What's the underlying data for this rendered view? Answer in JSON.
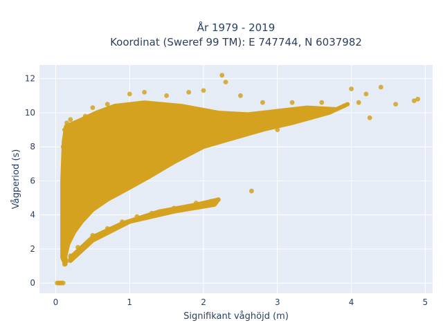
{
  "chart_data": {
    "type": "scatter",
    "title_lines": [
      "År 1979 - 2019",
      "Koordinat (Sweref 99 TM): E 747744, N 6037982"
    ],
    "xlabel": "Signifikant våghöjd (m)",
    "ylabel": "Vågperiod (s)",
    "xlim": [
      -0.22,
      5.1
    ],
    "ylim": [
      -0.6,
      12.8
    ],
    "xticks": [
      0,
      1,
      2,
      3,
      4,
      5
    ],
    "yticks": [
      0,
      2,
      4,
      6,
      8,
      10,
      12
    ],
    "grid": true,
    "marker_color": "#d4a21f",
    "background_color": "#e5ecf6",
    "points": [
      [
        0.02,
        0
      ],
      [
        0.04,
        0
      ],
      [
        0.06,
        0
      ],
      [
        0.08,
        0
      ],
      [
        0.1,
        0
      ],
      [
        0.12,
        1.1
      ],
      [
        0.15,
        1.3
      ],
      [
        0.2,
        1.6
      ],
      [
        0.3,
        2.1
      ],
      [
        0.5,
        2.8
      ],
      [
        0.7,
        3.2
      ],
      [
        0.9,
        3.6
      ],
      [
        1.1,
        3.9
      ],
      [
        1.3,
        4.1
      ],
      [
        1.6,
        4.4
      ],
      [
        1.9,
        4.7
      ],
      [
        2.1,
        4.8
      ],
      [
        2.2,
        4.9
      ],
      [
        0.1,
        6.5
      ],
      [
        0.1,
        8.0
      ],
      [
        0.12,
        9.0
      ],
      [
        0.15,
        9.4
      ],
      [
        0.2,
        9.6
      ],
      [
        0.4,
        9.8
      ],
      [
        0.5,
        10.3
      ],
      [
        0.7,
        10.5
      ],
      [
        1.0,
        11.1
      ],
      [
        1.2,
        11.2
      ],
      [
        1.5,
        11.0
      ],
      [
        1.8,
        11.2
      ],
      [
        2.0,
        11.3
      ],
      [
        2.25,
        12.2
      ],
      [
        2.3,
        11.8
      ],
      [
        2.5,
        11.0
      ],
      [
        2.8,
        10.6
      ],
      [
        3.2,
        10.6
      ],
      [
        3.6,
        10.6
      ],
      [
        3.9,
        10.4
      ],
      [
        4.0,
        11.4
      ],
      [
        4.2,
        11.1
      ],
      [
        4.4,
        11.5
      ],
      [
        4.1,
        10.6
      ],
      [
        4.25,
        9.7
      ],
      [
        4.6,
        10.5
      ],
      [
        4.85,
        10.7
      ],
      [
        4.9,
        10.8
      ],
      [
        2.65,
        5.4
      ],
      [
        3.0,
        9.0
      ],
      [
        2.8,
        9.6
      ],
      [
        2.5,
        9.3
      ],
      [
        2.0,
        8.6
      ],
      [
        1.5,
        7.5
      ],
      [
        1.0,
        6.6
      ],
      [
        0.5,
        5.0
      ]
    ]
  }
}
